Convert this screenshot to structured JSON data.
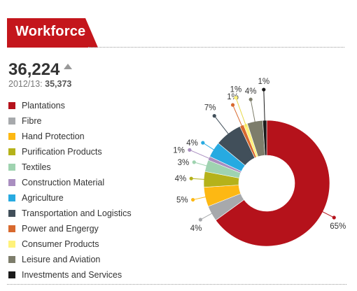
{
  "header": {
    "title": "Workforce"
  },
  "metric": {
    "value": "36,224",
    "previous_label": "2012/13:",
    "previous_value": "35,373"
  },
  "chart_data": {
    "type": "pie",
    "donut": true,
    "categories": [
      "Plantations",
      "Fibre",
      "Hand Protection",
      "Purification Products",
      "Textiles",
      "Construction Material",
      "Agriculture",
      "Transportation and Logistics",
      "Power and Engergy",
      "Consumer Products",
      "Leisure and Aviation",
      "Investments and Services"
    ],
    "values": [
      65,
      4,
      5,
      4,
      3,
      1,
      4,
      7,
      1,
      1,
      4,
      1
    ],
    "labels": [
      "65%",
      "4%",
      "5%",
      "4%",
      "3%",
      "1%",
      "4%",
      "7%",
      "1%",
      "1%",
      "4%",
      "1%"
    ],
    "colors": [
      "#b5121b",
      "#a7a9ac",
      "#fdb813",
      "#b5b21a",
      "#9fd3b0",
      "#a98ec0",
      "#27aae1",
      "#414f5a",
      "#d8692e",
      "#fff27a",
      "#7d7d6b",
      "#1a1a1a"
    ],
    "legend_position": "left"
  }
}
